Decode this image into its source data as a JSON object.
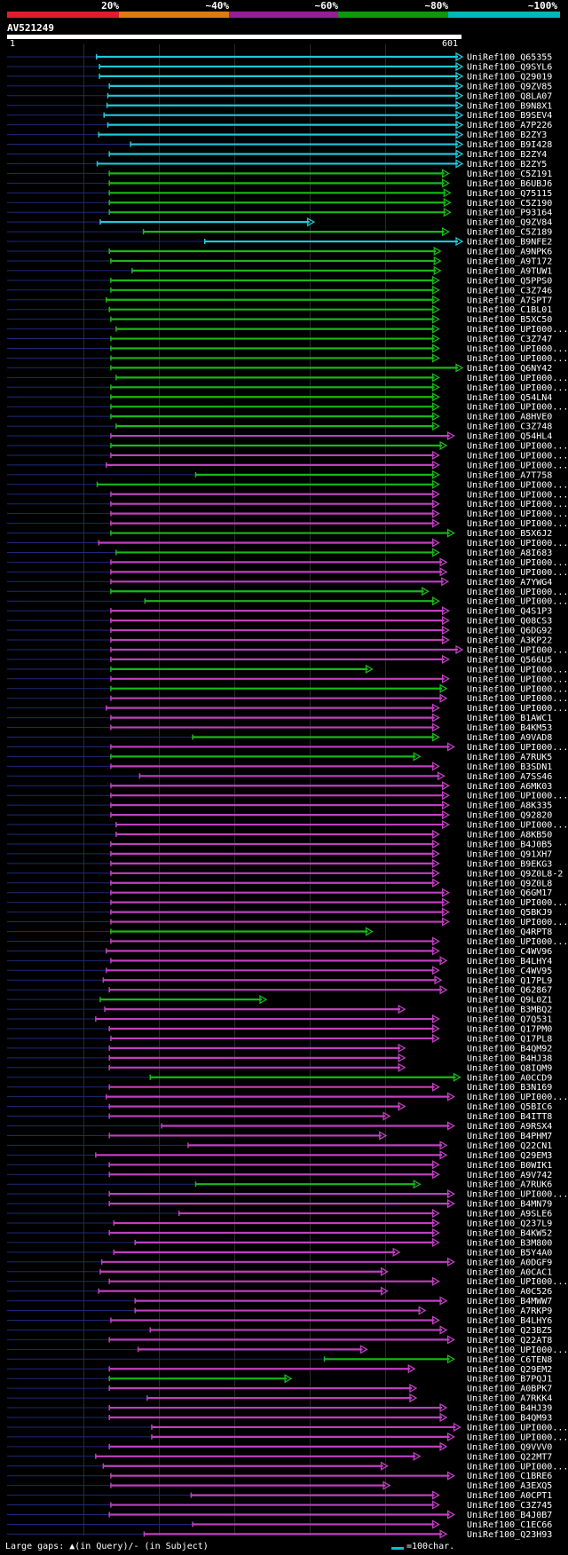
{
  "header": {
    "percent_labels": [
      "20%",
      "~40%",
      "~60%",
      "~80%",
      "~100%"
    ],
    "band_colors": [
      "#e21c2c",
      "#e07a10",
      "#9a1c9a",
      "#0a9a0a",
      "#00b8b8"
    ]
  },
  "query": {
    "name": "AV521249",
    "start": "1",
    "end": "601"
  },
  "footer": {
    "gaps_text": "Large gaps: ▲(in Query)/- (in Subject)",
    "scale_text": "=100char."
  },
  "chart_data": {
    "type": "alignment_overview",
    "query_length": 601,
    "rows": [
      {
        "label": "UniRef100_Q65355",
        "s": 119,
        "e": 601,
        "c": "cyan"
      },
      {
        "label": "UniRef100_Q9SYL6",
        "s": 123,
        "e": 601,
        "c": "cyan"
      },
      {
        "label": "UniRef100_Q29019",
        "s": 123,
        "e": 601,
        "c": "cyan"
      },
      {
        "label": "UniRef100_Q9ZV85",
        "s": 136,
        "e": 601,
        "c": "cyan"
      },
      {
        "label": "UniRef100_Q8LA07",
        "s": 134,
        "e": 601,
        "c": "cyan"
      },
      {
        "label": "UniRef100_B9N8X1",
        "s": 133,
        "e": 601,
        "c": "cyan"
      },
      {
        "label": "UniRef100_B9SEV4",
        "s": 129,
        "e": 601,
        "c": "cyan"
      },
      {
        "label": "UniRef100_A7P226",
        "s": 134,
        "e": 601,
        "c": "cyan"
      },
      {
        "label": "UniRef100_B2ZY3",
        "s": 122,
        "e": 601,
        "c": "cyan"
      },
      {
        "label": "UniRef100_B9I428",
        "s": 164,
        "e": 601,
        "c": "cyan"
      },
      {
        "label": "UniRef100_B2ZY4",
        "s": 136,
        "e": 601,
        "c": "cyan"
      },
      {
        "label": "UniRef100_B2ZY5",
        "s": 120,
        "e": 601,
        "c": "cyan"
      },
      {
        "label": "UniRef100_C5Z191",
        "s": 136,
        "e": 583,
        "c": "green"
      },
      {
        "label": "UniRef100_B6UBJ6",
        "s": 136,
        "e": 583,
        "c": "green"
      },
      {
        "label": "UniRef100_Q75115",
        "s": 136,
        "e": 585,
        "c": "green"
      },
      {
        "label": "UniRef100_C5Z190",
        "s": 136,
        "e": 585,
        "c": "green"
      },
      {
        "label": "UniRef100_P93164",
        "s": 136,
        "e": 585,
        "c": "green"
      },
      {
        "label": "UniRef100_Q9ZV84",
        "s": 124,
        "e": 405,
        "c": "cyan"
      },
      {
        "label": "UniRef100_C5Z189",
        "s": 181,
        "e": 583,
        "c": "green"
      },
      {
        "label": "UniRef100_B9NFE2",
        "s": 262,
        "e": 601,
        "c": "cyan"
      },
      {
        "label": "UniRef100_A9NPK6",
        "s": 136,
        "e": 572,
        "c": "green"
      },
      {
        "label": "UniRef100_A9T172",
        "s": 138,
        "e": 572,
        "c": "green"
      },
      {
        "label": "UniRef100_A9TUW1",
        "s": 166,
        "e": 572,
        "c": "green"
      },
      {
        "label": "UniRef100_Q5PPS0",
        "s": 138,
        "e": 570,
        "c": "green"
      },
      {
        "label": "UniRef100_C3Z746",
        "s": 138,
        "e": 570,
        "c": "green"
      },
      {
        "label": "UniRef100_A7SPT7",
        "s": 132,
        "e": 570,
        "c": "green"
      },
      {
        "label": "UniRef100_C1BL01",
        "s": 136,
        "e": 570,
        "c": "green"
      },
      {
        "label": "UniRef100_B5XC50",
        "s": 138,
        "e": 570,
        "c": "green"
      },
      {
        "label": "UniRef100_UPI000...",
        "s": 145,
        "e": 570,
        "c": "green"
      },
      {
        "label": "UniRef100_C3Z747",
        "s": 138,
        "e": 570,
        "c": "green"
      },
      {
        "label": "UniRef100_UPI000...",
        "s": 138,
        "e": 570,
        "c": "green"
      },
      {
        "label": "UniRef100_UPI000...",
        "s": 138,
        "e": 570,
        "c": "green"
      },
      {
        "label": "UniRef100_Q6NY42",
        "s": 138,
        "e": 601,
        "c": "green"
      },
      {
        "label": "UniRef100_UPI000...",
        "s": 145,
        "e": 570,
        "c": "green"
      },
      {
        "label": "UniRef100_UPI000...",
        "s": 138,
        "e": 570,
        "c": "green"
      },
      {
        "label": "UniRef100_Q54LN4",
        "s": 138,
        "e": 570,
        "c": "green"
      },
      {
        "label": "UniRef100_UPI000...",
        "s": 138,
        "e": 570,
        "c": "green"
      },
      {
        "label": "UniRef100_A8HVE0",
        "s": 138,
        "e": 570,
        "c": "green"
      },
      {
        "label": "UniRef100_C3Z748",
        "s": 145,
        "e": 570,
        "c": "green"
      },
      {
        "label": "UniRef100_Q54HL4",
        "s": 138,
        "e": 590,
        "c": "magenta"
      },
      {
        "label": "UniRef100_UPI000...",
        "s": 138,
        "e": 580,
        "c": "green"
      },
      {
        "label": "UniRef100_UPI000...",
        "s": 138,
        "e": 570,
        "c": "magenta"
      },
      {
        "label": "UniRef100_UPI000...",
        "s": 132,
        "e": 570,
        "c": "magenta"
      },
      {
        "label": "UniRef100_A7T758",
        "s": 250,
        "e": 570,
        "c": "green"
      },
      {
        "label": "UniRef100_UPI000...",
        "s": 120,
        "e": 570,
        "c": "green"
      },
      {
        "label": "UniRef100_UPI000...",
        "s": 138,
        "e": 570,
        "c": "magenta"
      },
      {
        "label": "UniRef100_UPI000...",
        "s": 138,
        "e": 570,
        "c": "magenta"
      },
      {
        "label": "UniRef100_UPI000...",
        "s": 138,
        "e": 570,
        "c": "magenta"
      },
      {
        "label": "UniRef100_UPI000...",
        "s": 138,
        "e": 570,
        "c": "magenta"
      },
      {
        "label": "UniRef100_B5X6J2",
        "s": 138,
        "e": 590,
        "c": "green"
      },
      {
        "label": "UniRef100_UPI000...",
        "s": 122,
        "e": 570,
        "c": "magenta"
      },
      {
        "label": "UniRef100_A8I683",
        "s": 145,
        "e": 570,
        "c": "green"
      },
      {
        "label": "UniRef100_UPI000...",
        "s": 138,
        "e": 580,
        "c": "magenta"
      },
      {
        "label": "UniRef100_UPI000...",
        "s": 138,
        "e": 580,
        "c": "magenta"
      },
      {
        "label": "UniRef100_A7YWG4",
        "s": 138,
        "e": 582,
        "c": "magenta"
      },
      {
        "label": "UniRef100_UPI000...",
        "s": 138,
        "e": 556,
        "c": "green"
      },
      {
        "label": "UniRef100_UPI000...",
        "s": 183,
        "e": 570,
        "c": "green"
      },
      {
        "label": "UniRef100_Q4S1P3",
        "s": 138,
        "e": 583,
        "c": "magenta"
      },
      {
        "label": "UniRef100_Q08CS3",
        "s": 138,
        "e": 583,
        "c": "magenta"
      },
      {
        "label": "UniRef100_Q6DG92",
        "s": 138,
        "e": 583,
        "c": "magenta"
      },
      {
        "label": "UniRef100_A3KP22",
        "s": 138,
        "e": 583,
        "c": "magenta"
      },
      {
        "label": "UniRef100_UPI000...",
        "s": 138,
        "e": 601,
        "c": "magenta"
      },
      {
        "label": "UniRef100_Q566U5",
        "s": 138,
        "e": 583,
        "c": "magenta"
      },
      {
        "label": "UniRef100_UPI000...",
        "s": 138,
        "e": 482,
        "c": "green"
      },
      {
        "label": "UniRef100_UPI000...",
        "s": 138,
        "e": 583,
        "c": "magenta"
      },
      {
        "label": "UniRef100_UPI000...",
        "s": 138,
        "e": 580,
        "c": "green"
      },
      {
        "label": "UniRef100_UPI000...",
        "s": 138,
        "e": 580,
        "c": "magenta"
      },
      {
        "label": "UniRef100_UPI000...",
        "s": 132,
        "e": 570,
        "c": "magenta"
      },
      {
        "label": "UniRef100_B1AWC1",
        "s": 138,
        "e": 570,
        "c": "magenta"
      },
      {
        "label": "UniRef100_B4KM53",
        "s": 138,
        "e": 570,
        "c": "magenta"
      },
      {
        "label": "UniRef100_A9VAD8",
        "s": 246,
        "e": 570,
        "c": "green"
      },
      {
        "label": "UniRef100_UPI000...",
        "s": 138,
        "e": 590,
        "c": "magenta"
      },
      {
        "label": "UniRef100_A7RUK5",
        "s": 138,
        "e": 545,
        "c": "green"
      },
      {
        "label": "UniRef100_B3SDN1",
        "s": 138,
        "e": 570,
        "c": "magenta"
      },
      {
        "label": "UniRef100_A7SS46",
        "s": 176,
        "e": 577,
        "c": "magenta"
      },
      {
        "label": "UniRef100_A6MK03",
        "s": 138,
        "e": 583,
        "c": "magenta"
      },
      {
        "label": "UniRef100_UPI000...",
        "s": 138,
        "e": 583,
        "c": "magenta"
      },
      {
        "label": "UniRef100_A8K335",
        "s": 138,
        "e": 583,
        "c": "magenta"
      },
      {
        "label": "UniRef100_Q92820",
        "s": 138,
        "e": 583,
        "c": "magenta"
      },
      {
        "label": "UniRef100_UPI000...",
        "s": 145,
        "e": 583,
        "c": "magenta"
      },
      {
        "label": "UniRef100_A8KB50",
        "s": 145,
        "e": 570,
        "c": "magenta"
      },
      {
        "label": "UniRef100_B4J0B5",
        "s": 138,
        "e": 570,
        "c": "magenta"
      },
      {
        "label": "UniRef100_Q91XH7",
        "s": 138,
        "e": 570,
        "c": "magenta"
      },
      {
        "label": "UniRef100_B9EKG3",
        "s": 138,
        "e": 570,
        "c": "magenta"
      },
      {
        "label": "UniRef100_Q9Z0L8-2",
        "s": 138,
        "e": 570,
        "c": "magenta"
      },
      {
        "label": "UniRef100_Q9Z0L8",
        "s": 138,
        "e": 570,
        "c": "magenta"
      },
      {
        "label": "UniRef100_Q6GM17",
        "s": 138,
        "e": 583,
        "c": "magenta"
      },
      {
        "label": "UniRef100_UPI000...",
        "s": 138,
        "e": 583,
        "c": "magenta"
      },
      {
        "label": "UniRef100_Q5BKJ9",
        "s": 138,
        "e": 583,
        "c": "magenta"
      },
      {
        "label": "UniRef100_UPI000...",
        "s": 138,
        "e": 583,
        "c": "magenta"
      },
      {
        "label": "UniRef100_Q4RPT8",
        "s": 138,
        "e": 482,
        "c": "green"
      },
      {
        "label": "UniRef100_UPI000...",
        "s": 138,
        "e": 570,
        "c": "magenta"
      },
      {
        "label": "UniRef100_C4WV96",
        "s": 132,
        "e": 570,
        "c": "magenta"
      },
      {
        "label": "UniRef100_B4LHY4",
        "s": 138,
        "e": 580,
        "c": "magenta"
      },
      {
        "label": "UniRef100_C4WV95",
        "s": 132,
        "e": 570,
        "c": "magenta"
      },
      {
        "label": "UniRef100_Q17PL9",
        "s": 128,
        "e": 573,
        "c": "magenta"
      },
      {
        "label": "UniRef100_Q62867",
        "s": 136,
        "e": 580,
        "c": "magenta"
      },
      {
        "label": "UniRef100_Q9L0Z1",
        "s": 124,
        "e": 342,
        "c": "green"
      },
      {
        "label": "UniRef100_B3MBQ2",
        "s": 130,
        "e": 525,
        "c": "magenta"
      },
      {
        "label": "UniRef100_Q7Q531",
        "s": 118,
        "e": 570,
        "c": "magenta"
      },
      {
        "label": "UniRef100_Q17PM0",
        "s": 136,
        "e": 570,
        "c": "magenta"
      },
      {
        "label": "UniRef100_Q17PL8",
        "s": 138,
        "e": 570,
        "c": "magenta"
      },
      {
        "label": "UniRef100_B4QM92",
        "s": 136,
        "e": 525,
        "c": "magenta"
      },
      {
        "label": "UniRef100_B4HJ38",
        "s": 136,
        "e": 525,
        "c": "magenta"
      },
      {
        "label": "UniRef100_Q8IQM9",
        "s": 136,
        "e": 525,
        "c": "magenta"
      },
      {
        "label": "UniRef100_A0CCD9",
        "s": 190,
        "e": 598,
        "c": "green"
      },
      {
        "label": "UniRef100_B3N169",
        "s": 136,
        "e": 570,
        "c": "magenta"
      },
      {
        "label": "UniRef100_UPI000...",
        "s": 132,
        "e": 590,
        "c": "magenta"
      },
      {
        "label": "UniRef100_Q5BIC6",
        "s": 136,
        "e": 525,
        "c": "magenta"
      },
      {
        "label": "UniRef100_B4ITT8",
        "s": 136,
        "e": 505,
        "c": "magenta"
      },
      {
        "label": "UniRef100_A9RSX4",
        "s": 205,
        "e": 590,
        "c": "magenta"
      },
      {
        "label": "UniRef100_B4PHM7",
        "s": 136,
        "e": 500,
        "c": "magenta"
      },
      {
        "label": "UniRef100_Q22CN1",
        "s": 240,
        "e": 580,
        "c": "magenta"
      },
      {
        "label": "UniRef100_Q29EM3",
        "s": 118,
        "e": 580,
        "c": "magenta"
      },
      {
        "label": "UniRef100_B0WIK1",
        "s": 136,
        "e": 570,
        "c": "magenta"
      },
      {
        "label": "UniRef100_A9V742",
        "s": 136,
        "e": 570,
        "c": "magenta"
      },
      {
        "label": "UniRef100_A7RUK6",
        "s": 250,
        "e": 545,
        "c": "green"
      },
      {
        "label": "UniRef100_UPI000...",
        "s": 136,
        "e": 590,
        "c": "magenta"
      },
      {
        "label": "UniRef100_B4MN79",
        "s": 136,
        "e": 590,
        "c": "magenta"
      },
      {
        "label": "UniRef100_A9SLE6",
        "s": 228,
        "e": 570,
        "c": "magenta"
      },
      {
        "label": "UniRef100_Q237L9",
        "s": 142,
        "e": 570,
        "c": "magenta"
      },
      {
        "label": "UniRef100_B4KW52",
        "s": 136,
        "e": 570,
        "c": "magenta"
      },
      {
        "label": "UniRef100_B3M800",
        "s": 170,
        "e": 570,
        "c": "magenta"
      },
      {
        "label": "UniRef100_B5Y4A0",
        "s": 142,
        "e": 518,
        "c": "magenta"
      },
      {
        "label": "UniRef100_A0DGF9",
        "s": 126,
        "e": 590,
        "c": "magenta"
      },
      {
        "label": "UniRef100_A0CAC1",
        "s": 124,
        "e": 502,
        "c": "magenta"
      },
      {
        "label": "UniRef100_UPI000...",
        "s": 136,
        "e": 570,
        "c": "magenta"
      },
      {
        "label": "UniRef100_A0C526",
        "s": 122,
        "e": 502,
        "c": "magenta"
      },
      {
        "label": "UniRef100_B4MWW7",
        "s": 170,
        "e": 580,
        "c": "magenta"
      },
      {
        "label": "UniRef100_A7RKP9",
        "s": 170,
        "e": 552,
        "c": "magenta"
      },
      {
        "label": "UniRef100_B4LHY6",
        "s": 138,
        "e": 570,
        "c": "magenta"
      },
      {
        "label": "UniRef100_Q23BZ5",
        "s": 190,
        "e": 580,
        "c": "magenta"
      },
      {
        "label": "UniRef100_Q22AT8",
        "s": 136,
        "e": 590,
        "c": "magenta"
      },
      {
        "label": "UniRef100_UPI000...",
        "s": 174,
        "e": 475,
        "c": "magenta"
      },
      {
        "label": "UniRef100_C6TEN8",
        "s": 420,
        "e": 590,
        "c": "green"
      },
      {
        "label": "UniRef100_Q29EM2",
        "s": 136,
        "e": 538,
        "c": "magenta"
      },
      {
        "label": "UniRef100_B7PQJ1",
        "s": 136,
        "e": 375,
        "c": "green"
      },
      {
        "label": "UniRef100_A0BPK7",
        "s": 136,
        "e": 540,
        "c": "magenta"
      },
      {
        "label": "UniRef100_A7RKK4",
        "s": 186,
        "e": 540,
        "c": "magenta"
      },
      {
        "label": "UniRef100_B4HJ39",
        "s": 136,
        "e": 580,
        "c": "magenta"
      },
      {
        "label": "UniRef100_B4QM93",
        "s": 136,
        "e": 580,
        "c": "magenta"
      },
      {
        "label": "UniRef100_UPI000...",
        "s": 192,
        "e": 598,
        "c": "magenta"
      },
      {
        "label": "UniRef100_UPI000...",
        "s": 192,
        "e": 590,
        "c": "magenta"
      },
      {
        "label": "UniRef100_Q9VVV0",
        "s": 136,
        "e": 580,
        "c": "magenta"
      },
      {
        "label": "UniRef100_Q22MT7",
        "s": 118,
        "e": 545,
        "c": "magenta"
      },
      {
        "label": "UniRef100_UPI000...",
        "s": 128,
        "e": 502,
        "c": "magenta"
      },
      {
        "label": "UniRef100_C1BRE6",
        "s": 138,
        "e": 590,
        "c": "magenta"
      },
      {
        "label": "UniRef100_A3EXQ5",
        "s": 138,
        "e": 505,
        "c": "magenta"
      },
      {
        "label": "UniRef100_A0CPT1",
        "s": 244,
        "e": 570,
        "c": "magenta"
      },
      {
        "label": "UniRef100_C3Z745",
        "s": 138,
        "e": 570,
        "c": "magenta"
      },
      {
        "label": "UniRef100_B4J0B7",
        "s": 136,
        "e": 590,
        "c": "magenta"
      },
      {
        "label": "UniRef100_C1EC66",
        "s": 246,
        "e": 570,
        "c": "magenta"
      },
      {
        "label": "UniRef100_Q23H93",
        "s": 182,
        "e": 580,
        "c": "magenta"
      }
    ],
    "colors": {
      "cyan": "#1ec8d8",
      "green": "#18b818",
      "magenta": "#c040c0"
    }
  }
}
